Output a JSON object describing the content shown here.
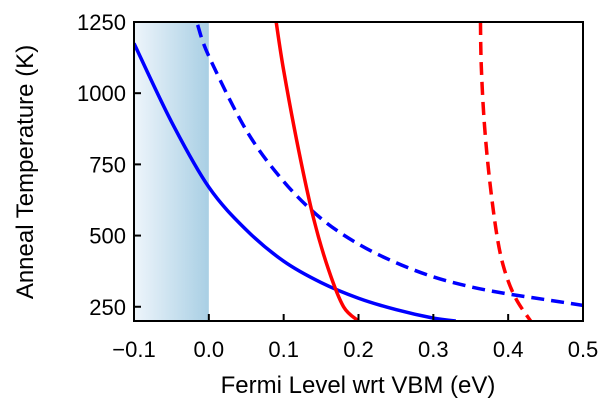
{
  "chart_data": {
    "type": "line",
    "title": "",
    "xlabel": "Fermi Level wrt VBM (eV)",
    "ylabel": "Anneal Temperature (K)",
    "xlim": [
      -0.1,
      0.5
    ],
    "ylim": [
      200,
      1250
    ],
    "xticks": [
      -0.1,
      0.0,
      0.1,
      0.2,
      0.3,
      0.4,
      0.5
    ],
    "xtick_labels": [
      "−0.1",
      "0.0",
      "0.1",
      "0.2",
      "0.3",
      "0.4",
      "0.5"
    ],
    "yticks": [
      250,
      500,
      750,
      1000,
      1250
    ],
    "ytick_labels": [
      "250",
      "500",
      "750",
      "1000",
      "1250"
    ],
    "grid": false,
    "legend": "none",
    "shaded_region": {
      "x_range": [
        -0.1,
        0.0
      ],
      "color_start": "#eef5fb",
      "color_end": "#a9cfe4"
    },
    "series": [
      {
        "color": "#0000ff",
        "dash": "solid",
        "x": [
          -0.1,
          -0.05,
          0.0,
          0.05,
          0.1,
          0.15,
          0.2,
          0.25,
          0.3,
          0.33
        ],
        "y": [
          1175,
          900,
          670,
          520,
          410,
          335,
          280,
          240,
          210,
          200
        ]
      },
      {
        "color": "#0000ff",
        "dash": "dashed",
        "x": [
          -0.015,
          0.0,
          0.05,
          0.1,
          0.15,
          0.2,
          0.25,
          0.3,
          0.35,
          0.4,
          0.45,
          0.5
        ],
        "y": [
          1240,
          1130,
          870,
          690,
          560,
          470,
          405,
          355,
          320,
          295,
          275,
          255
        ]
      },
      {
        "color": "#ff0000",
        "dash": "solid",
        "x": [
          0.09,
          0.1,
          0.12,
          0.14,
          0.16,
          0.18,
          0.2
        ],
        "y": [
          1250,
          1080,
          800,
          560,
          380,
          250,
          200
        ]
      },
      {
        "color": "#ff0000",
        "dash": "dashed",
        "x": [
          0.363,
          0.364,
          0.368,
          0.375,
          0.385,
          0.395,
          0.41,
          0.43
        ],
        "y": [
          1250,
          1100,
          900,
          700,
          500,
          380,
          280,
          200
        ]
      }
    ]
  }
}
